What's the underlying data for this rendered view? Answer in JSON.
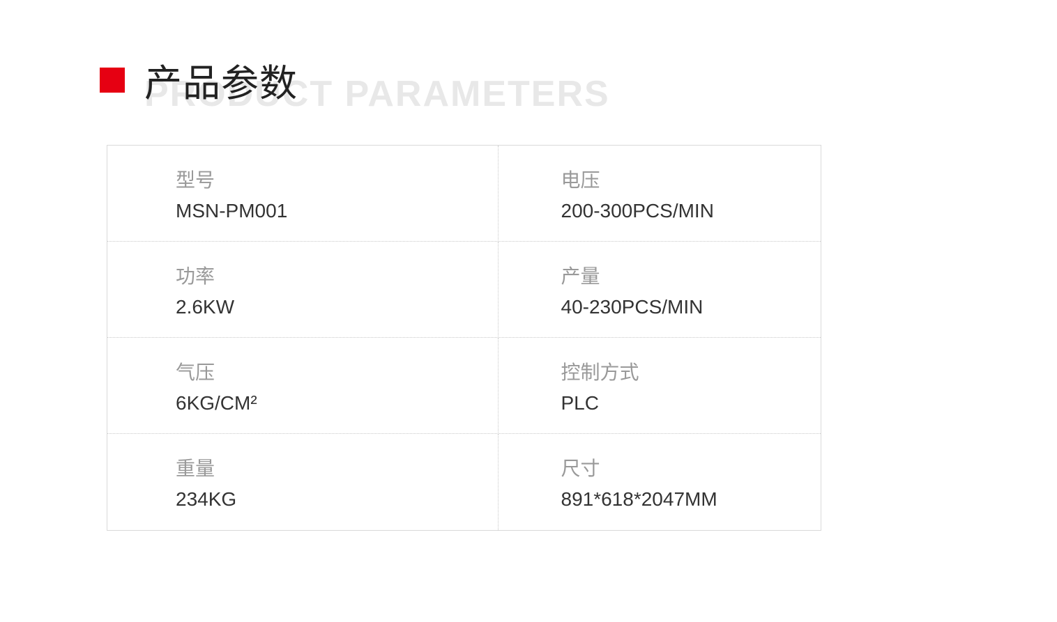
{
  "header": {
    "title_cn": "产品参数",
    "title_en": "PRODUCT PARAMETERS",
    "accent_color": "#e60012"
  },
  "table": {
    "border_color": "#d9d9d9",
    "dotted_color": "#c8c8c8",
    "label_color": "#999999",
    "value_color": "#333333",
    "label_fontsize": 28,
    "value_fontsize": 28,
    "rows": [
      {
        "left": {
          "label": "型号",
          "value": "MSN-PM001"
        },
        "right": {
          "label": "电压",
          "value": "200-300PCS/MIN"
        }
      },
      {
        "left": {
          "label": "功率",
          "value": "2.6KW"
        },
        "right": {
          "label": "产量",
          "value": "40-230PCS/MIN"
        }
      },
      {
        "left": {
          "label": "气压",
          "value": "6KG/CM²"
        },
        "right": {
          "label": "控制方式",
          "value": " PLC"
        }
      },
      {
        "left": {
          "label": "重量",
          "value": "234KG"
        },
        "right": {
          "label": "尺寸",
          "value": "891*618*2047MM"
        }
      }
    ]
  }
}
